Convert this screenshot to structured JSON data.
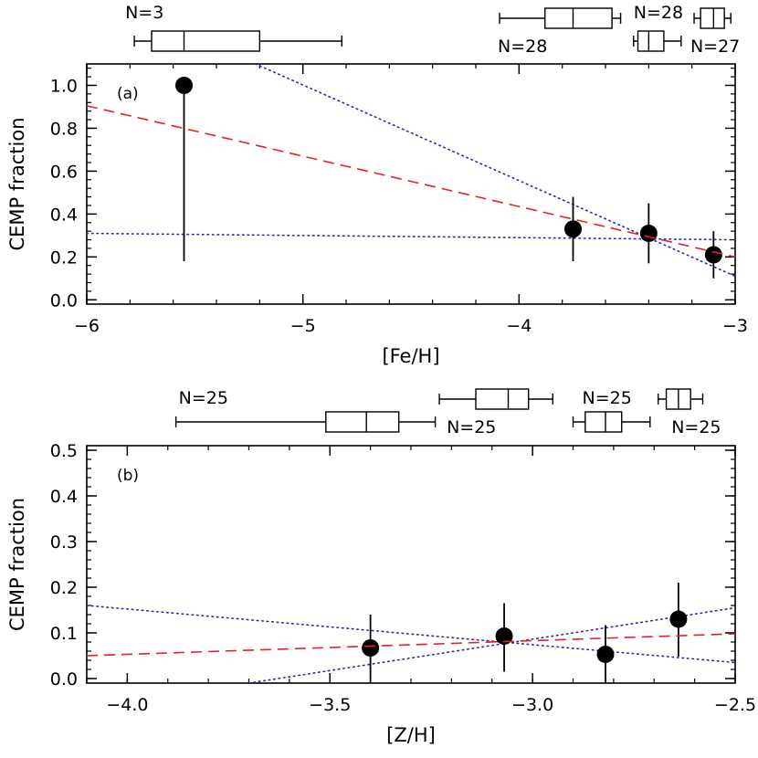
{
  "chart_data": [
    {
      "type": "scatter",
      "panel_label": "(a)",
      "xlabel": "[Fe/H]",
      "ylabel": "CEMP fraction",
      "xlim": [
        -6,
        -3
      ],
      "ylim": [
        -0.02,
        1.1
      ],
      "x_ticks": [
        -6,
        -5,
        -4,
        -3
      ],
      "x_tick_labels": [
        "−6",
        "−5",
        "−4",
        "−3"
      ],
      "y_ticks": [
        0.0,
        0.2,
        0.4,
        0.6,
        0.8,
        1.0
      ],
      "y_tick_labels": [
        "0.0",
        "0.2",
        "0.4",
        "0.6",
        "0.8",
        "1.0"
      ],
      "points": [
        {
          "x": -5.55,
          "y": 1.0,
          "err_low": 0.18,
          "err_high": 1.0
        },
        {
          "x": -3.75,
          "y": 0.33,
          "err_low": 0.18,
          "err_high": 0.48
        },
        {
          "x": -3.4,
          "y": 0.31,
          "err_low": 0.17,
          "err_high": 0.45
        },
        {
          "x": -3.1,
          "y": 0.21,
          "err_low": 0.1,
          "err_high": 0.32
        }
      ],
      "fit_line": {
        "style": "dashed",
        "color": "#e8202a",
        "x": [
          -6,
          -3
        ],
        "y": [
          0.905,
          0.2
        ]
      },
      "confidence_lines": [
        {
          "style": "dotted",
          "color": "#2a2aa8",
          "x": [
            -6,
            -3
          ],
          "y": [
            0.31,
            0.28
          ]
        },
        {
          "style": "dotted",
          "color": "#2a2aa8",
          "x": [
            -5.22,
            -3
          ],
          "y": [
            1.1,
            0.11
          ]
        }
      ],
      "box_plots": [
        {
          "whisker_min": -5.78,
          "q1": -5.7,
          "median": -5.55,
          "q3": -5.2,
          "whisker_max": -4.82,
          "row": 0,
          "label": "N=3",
          "label_anchor": "above-left"
        },
        {
          "whisker_min": -4.09,
          "q1": -3.88,
          "median": -3.75,
          "q3": -3.57,
          "whisker_max": -3.53,
          "row": 0,
          "label": "N=28",
          "label_anchor": "below-left"
        },
        {
          "whisker_min": -3.47,
          "q1": -3.45,
          "median": -3.4,
          "q3": -3.33,
          "whisker_max": -3.25,
          "row": 1,
          "label": "N=28",
          "label_anchor": "above-left"
        },
        {
          "whisker_min": -3.19,
          "q1": -3.16,
          "median": -3.1,
          "q3": -3.05,
          "whisker_max": -3.02,
          "row": 0,
          "label": "N=27",
          "label_anchor": "below-right"
        }
      ]
    },
    {
      "type": "scatter",
      "panel_label": "(b)",
      "xlabel": "[Z/H]",
      "ylabel": "CEMP fraction",
      "xlim": [
        -4.1,
        -2.5
      ],
      "ylim": [
        -0.01,
        0.51
      ],
      "x_ticks": [
        -4.0,
        -3.5,
        -3.0,
        -2.5
      ],
      "x_tick_labels": [
        "−4.0",
        "−3.5",
        "−3.0",
        "−2.5"
      ],
      "y_ticks": [
        0.0,
        0.1,
        0.2,
        0.3,
        0.4,
        0.5
      ],
      "y_tick_labels": [
        "0.0",
        "0.1",
        "0.2",
        "0.3",
        "0.4",
        "0.5"
      ],
      "points": [
        {
          "x": -3.4,
          "y": 0.067,
          "err_low": -0.01,
          "err_high": 0.14
        },
        {
          "x": -3.07,
          "y": 0.093,
          "err_low": 0.015,
          "err_high": 0.165
        },
        {
          "x": -2.82,
          "y": 0.053,
          "err_low": -0.01,
          "err_high": 0.117
        },
        {
          "x": -2.64,
          "y": 0.13,
          "err_low": 0.048,
          "err_high": 0.21
        }
      ],
      "fit_line": {
        "style": "dashed",
        "color": "#e8202a",
        "x": [
          -4.1,
          -2.5
        ],
        "y": [
          0.05,
          0.098
        ]
      },
      "confidence_lines": [
        {
          "style": "dotted",
          "color": "#2a2aa8",
          "x": [
            -4.1,
            -2.5
          ],
          "y": [
            0.16,
            0.035
          ]
        },
        {
          "style": "dotted",
          "color": "#2a2aa8",
          "x": [
            -3.7,
            -2.5
          ],
          "y": [
            -0.01,
            0.155
          ]
        }
      ],
      "box_plots": [
        {
          "whisker_min": -3.88,
          "q1": -3.51,
          "median": -3.41,
          "q3": -3.33,
          "whisker_max": -3.24,
          "row": 1,
          "label": "N=25",
          "label_anchor": "above-left"
        },
        {
          "whisker_min": -3.23,
          "q1": -3.14,
          "median": -3.06,
          "q3": -3.01,
          "whisker_max": -2.95,
          "row": 0,
          "label": "N=25",
          "label_anchor": "below-left"
        },
        {
          "whisker_min": -2.9,
          "q1": -2.87,
          "median": -2.82,
          "q3": -2.78,
          "whisker_max": -2.71,
          "row": 1,
          "label": "N=25",
          "label_anchor": "above-left"
        },
        {
          "whisker_min": -2.69,
          "q1": -2.67,
          "median": -2.64,
          "q3": -2.61,
          "whisker_max": -2.58,
          "row": 0,
          "label": "N=25",
          "label_anchor": "below-right"
        }
      ]
    }
  ]
}
